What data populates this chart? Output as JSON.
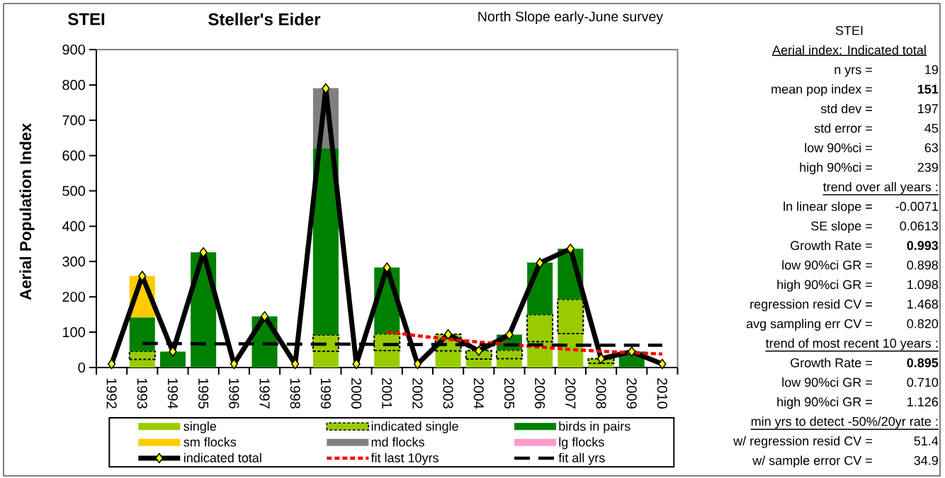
{
  "chart_data": [
    {
      "type": "bar",
      "stacked": true,
      "title": "Steller's Eider",
      "subtitle": "North Slope early-June survey",
      "annotations": [
        "STEI"
      ],
      "ylabel": "Aerial Population Index",
      "categories": [
        "1992",
        "1993",
        "1994",
        "1995",
        "1996",
        "1997",
        "1998",
        "1999",
        "2000",
        "2001",
        "2002",
        "2003",
        "2004",
        "2005",
        "2006",
        "2007",
        "2008",
        "2009",
        "2010"
      ],
      "ylim": [
        0,
        900
      ],
      "yticks": [
        0,
        100,
        200,
        300,
        400,
        500,
        600,
        700,
        800,
        900
      ],
      "legend": "bottom",
      "series": [
        {
          "name": "single",
          "color": "#99cc00",
          "values": [
            0,
            23,
            0,
            0,
            0,
            0,
            0,
            46,
            0,
            48,
            0,
            47,
            24,
            25,
            73,
            96,
            12,
            0,
            0
          ]
        },
        {
          "name": "indicated single",
          "color": "#99cc00",
          "line_style": "dashed",
          "values": [
            0,
            23,
            0,
            0,
            0,
            0,
            0,
            46,
            0,
            47,
            0,
            47,
            24,
            24,
            77,
            97,
            13,
            0,
            0
          ]
        },
        {
          "name": "birds in pairs",
          "color": "#008000",
          "values": [
            0,
            96,
            45,
            326,
            0,
            145,
            0,
            529,
            0,
            188,
            0,
            0,
            0,
            44,
            147,
            143,
            0,
            45,
            0
          ]
        },
        {
          "name": "sm flocks",
          "color": "#ffcc00",
          "values": [
            0,
            117,
            0,
            0,
            0,
            0,
            0,
            0,
            0,
            0,
            0,
            0,
            0,
            0,
            0,
            0,
            0,
            0,
            0
          ]
        },
        {
          "name": "md flocks",
          "color": "#808080",
          "values": [
            0,
            0,
            0,
            0,
            0,
            0,
            0,
            170,
            0,
            0,
            0,
            0,
            0,
            0,
            0,
            0,
            0,
            0,
            0
          ]
        },
        {
          "name": "lg flocks",
          "color": "#ff99cc",
          "values": [
            0,
            0,
            0,
            0,
            0,
            0,
            0,
            0,
            0,
            0,
            0,
            0,
            0,
            0,
            0,
            0,
            0,
            0,
            0
          ]
        },
        {
          "name": "indicated total",
          "type": "line",
          "color": "#000000",
          "marker": "diamond",
          "colors": [
            "#ffff00",
            "#ffff00",
            "#ffff00",
            "#ffff00",
            "#ffff00",
            "#ffff00",
            "#ffff00",
            "#ffff00",
            "#ffff00",
            "#ffff00",
            "#ffff00",
            "#ffff00",
            "#ffff00",
            "#ffff00",
            "#ffff00",
            "#ffff00",
            "#ffff00",
            "#ffff00",
            "#ffff00"
          ],
          "values": [
            10,
            259,
            45,
            326,
            10,
            145,
            10,
            790,
            10,
            283,
            10,
            94,
            47,
            93,
            296,
            336,
            25,
            45,
            10
          ]
        },
        {
          "name": "fit last 10yrs",
          "type": "line",
          "color": "#ff0000",
          "line_style": "dotted",
          "values": [
            null,
            null,
            null,
            null,
            null,
            null,
            null,
            null,
            null,
            101,
            90,
            80,
            72,
            65,
            58,
            51,
            46,
            42,
            38
          ]
        },
        {
          "name": "fit all yrs",
          "type": "line",
          "color": "#000000",
          "line_style": "dashed",
          "values": [
            null,
            68,
            68,
            67,
            67,
            67,
            66,
            66,
            66,
            65,
            65,
            65,
            64,
            64,
            64,
            63,
            63,
            63,
            63
          ]
        }
      ]
    },
    {
      "type": "other",
      "title": "STEI",
      "subtitle": "Aerial index: Indicated total",
      "categories": [
        "n yrs =",
        "mean pop index =",
        "std dev =",
        "std error =",
        "low 90%ci =",
        "high 90%ci ="
      ],
      "value_labels": [
        "19",
        "151",
        "197",
        "45",
        "63",
        "239"
      ]
    },
    {
      "type": "other",
      "title": "trend over all years :",
      "categories": [
        "ln linear slope =",
        "SE slope =",
        "Growth Rate =",
        "low 90%ci GR =",
        "high 90%ci GR =",
        "regression resid CV =",
        "avg sampling err CV ="
      ],
      "value_labels": [
        "-0.0071",
        "0.0613",
        "0.993",
        "0.898",
        "1.098",
        "1.468",
        "0.820"
      ]
    },
    {
      "type": "other",
      "title": "trend of most recent 10 years :",
      "categories": [
        "Growth Rate =",
        "low 90%ci GR =",
        "high 90%ci GR ="
      ],
      "value_labels": [
        "0.895",
        "0.710",
        "1.126"
      ]
    },
    {
      "type": "other",
      "title": "min yrs to detect -50%/20yr rate :",
      "categories": [
        "w/ regression resid CV =",
        "w/ sample error CV ="
      ],
      "value_labels": [
        "51.4",
        "34.9"
      ]
    }
  ]
}
